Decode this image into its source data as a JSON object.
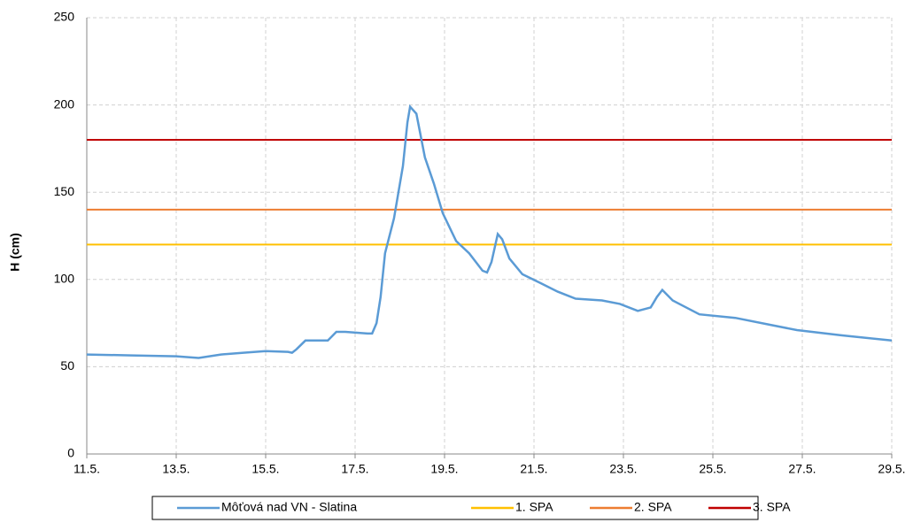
{
  "chart_data": {
    "type": "line",
    "y_label": "H (cm)",
    "xlim": [
      11,
      29
    ],
    "ylim": [
      0,
      250
    ],
    "xticks": [
      {
        "value": 11,
        "label": "11.5."
      },
      {
        "value": 13,
        "label": "13.5."
      },
      {
        "value": 15,
        "label": "15.5."
      },
      {
        "value": 17,
        "label": "17.5."
      },
      {
        "value": 19,
        "label": "19.5."
      },
      {
        "value": 21,
        "label": "21.5."
      },
      {
        "value": 23,
        "label": "23.5."
      },
      {
        "value": 25,
        "label": "25.5."
      },
      {
        "value": 27,
        "label": "27.5."
      },
      {
        "value": 29,
        "label": "29.5."
      }
    ],
    "yticks": [
      0,
      50,
      100,
      150,
      200,
      250
    ],
    "grid": true,
    "legend": "bottom",
    "series": [
      {
        "name": "Môťová nad VN - Slatina",
        "color": "#5b9bd5",
        "x": [
          11,
          12,
          13,
          13.5,
          14,
          14.5,
          15,
          15.5,
          15.59,
          15.69,
          15.89,
          16.39,
          16.58,
          16.78,
          17.28,
          17.38,
          17.48,
          17.57,
          17.67,
          17.87,
          18.07,
          18.17,
          18.23,
          18.37,
          18.56,
          18.76,
          18.96,
          19.26,
          19.55,
          19.85,
          19.95,
          20.05,
          20.19,
          20.29,
          20.45,
          20.74,
          21.14,
          21.53,
          21.93,
          22.52,
          22.92,
          23.32,
          23.61,
          23.75,
          23.87,
          24.1,
          24.7,
          25.5,
          26.29,
          26.88,
          27.87,
          29
        ],
        "values": [
          57,
          56.5,
          56,
          55,
          57,
          58,
          59,
          58.5,
          58,
          60,
          65,
          65,
          70,
          70,
          69,
          69,
          75,
          90,
          115,
          135,
          165,
          190,
          199,
          195,
          170,
          155,
          138,
          122,
          115,
          105,
          104,
          110,
          126,
          123,
          112,
          103,
          98,
          93,
          89,
          88,
          86,
          82,
          84,
          90,
          94,
          88,
          80,
          78,
          74,
          71,
          68,
          65
        ]
      },
      {
        "name": "1. SPA",
        "color": "#ffc000",
        "x": [
          11,
          29
        ],
        "values": [
          120,
          120
        ]
      },
      {
        "name": "2. SPA",
        "color": "#ed7d31",
        "x": [
          11,
          29
        ],
        "values": [
          140,
          140
        ]
      },
      {
        "name": "3. SPA",
        "color": "#c00000",
        "x": [
          11,
          29
        ],
        "values": [
          180,
          180
        ]
      }
    ]
  }
}
